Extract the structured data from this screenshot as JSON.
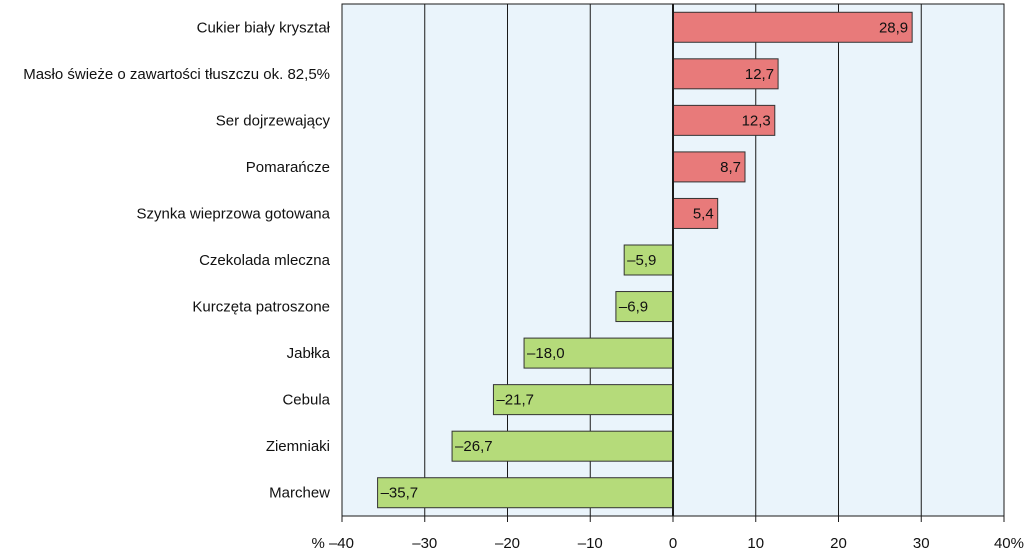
{
  "chart_data": {
    "type": "bar",
    "orientation": "horizontal",
    "categories": [
      "Cukier biały kryształ",
      "Masło świeże o zawartości tłuszczu ok. 82,5%",
      "Ser dojrzewający",
      "Pomarańcze",
      "Szynka wieprzowa gotowana",
      "Czekolada mleczna",
      "Kurczęta patroszone",
      "Jabłka",
      "Cebula",
      "Ziemniaki",
      "Marchew"
    ],
    "values": [
      28.9,
      12.7,
      12.3,
      8.7,
      5.4,
      -5.9,
      -6.9,
      -18.0,
      -21.7,
      -26.7,
      -35.7
    ],
    "value_labels": [
      "28,9",
      "12,7",
      "12,3",
      "8,7",
      "5,4",
      "–5,9",
      "–6,9",
      "–18,0",
      "–21,7",
      "–26,7",
      "–35,7"
    ],
    "xlim": [
      -40,
      40
    ],
    "x_ticks": [
      -40,
      -30,
      -20,
      -10,
      0,
      10,
      20,
      30,
      40
    ],
    "x_tick_labels": [
      "% –40",
      "–30",
      "–20",
      "–10",
      "0",
      "10",
      "20",
      "30",
      "40%"
    ],
    "grid": "vertical",
    "colors": {
      "positive": "#e87a7a",
      "negative": "#b5db7a",
      "background": "#eaf4fb",
      "gridline": "#1a1a1a",
      "bar_border": "#333333"
    }
  }
}
